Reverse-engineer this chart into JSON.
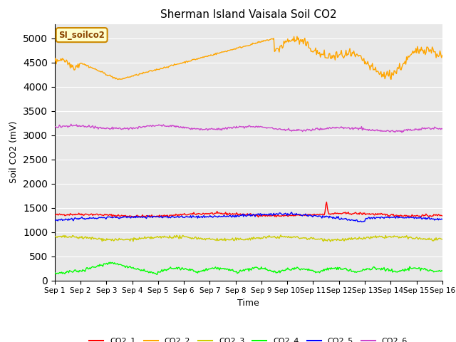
{
  "title": "Sherman Island Vaisala Soil CO2",
  "xlabel": "Time",
  "ylabel": "Soil CO2 (mV)",
  "annotation": "SI_soilco2",
  "xlim": [
    0,
    15
  ],
  "ylim": [
    0,
    5300
  ],
  "yticks": [
    0,
    500,
    1000,
    1500,
    2000,
    2500,
    3000,
    3500,
    4000,
    4500,
    5000
  ],
  "xtick_labels": [
    "Sep 1",
    "Sep 2",
    "Sep 3",
    "Sep 4",
    "Sep 5",
    "Sep 6",
    "Sep 7",
    "Sep 8",
    "Sep 9",
    "Sep 10",
    "Sep 11",
    "Sep 12",
    "Sep 13",
    "Sep 14",
    "Sep 15",
    "Sep 16"
  ],
  "bg_color": "#e8e8e8",
  "fig_color": "#ffffff",
  "co2_1_color": "red",
  "co2_2_color": "orange",
  "co2_3_color": "#cccc00",
  "co2_4_color": "lime",
  "co2_5_color": "blue",
  "co2_6_color": "#cc44cc",
  "annotation_text_color": "#8b4500",
  "annotation_bg": "#ffffcc",
  "annotation_edge": "#cc8800",
  "grid_color": "white",
  "figsize": [
    6.4,
    4.8
  ],
  "dpi": 100
}
